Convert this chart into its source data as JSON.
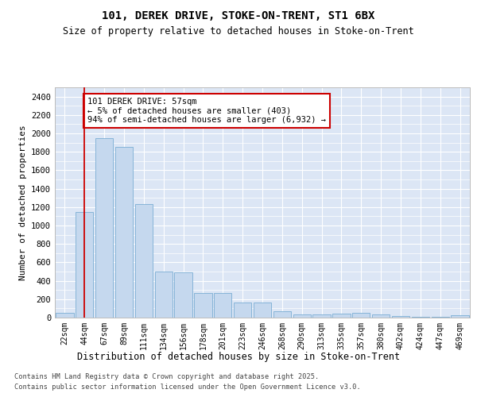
{
  "title1": "101, DEREK DRIVE, STOKE-ON-TRENT, ST1 6BX",
  "title2": "Size of property relative to detached houses in Stoke-on-Trent",
  "xlabel": "Distribution of detached houses by size in Stoke-on-Trent",
  "ylabel": "Number of detached properties",
  "categories": [
    "22sqm",
    "44sqm",
    "67sqm",
    "89sqm",
    "111sqm",
    "134sqm",
    "156sqm",
    "178sqm",
    "201sqm",
    "223sqm",
    "246sqm",
    "268sqm",
    "290sqm",
    "313sqm",
    "335sqm",
    "357sqm",
    "380sqm",
    "402sqm",
    "424sqm",
    "447sqm",
    "469sqm"
  ],
  "values": [
    50,
    1150,
    1950,
    1850,
    1230,
    500,
    490,
    265,
    265,
    160,
    160,
    70,
    35,
    35,
    45,
    50,
    35,
    20,
    5,
    5,
    30
  ],
  "bar_color": "#c5d8ee",
  "bar_edge_color": "#7aadd4",
  "vline_x_idx": 1,
  "vline_color": "#cc0000",
  "annotation_text": "101 DEREK DRIVE: 57sqm\n← 5% of detached houses are smaller (403)\n94% of semi-detached houses are larger (6,932) →",
  "annotation_box_facecolor": "#ffffff",
  "annotation_box_edgecolor": "#cc0000",
  "ylim": [
    0,
    2500
  ],
  "yticks": [
    0,
    200,
    400,
    600,
    800,
    1000,
    1200,
    1400,
    1600,
    1800,
    2000,
    2200,
    2400
  ],
  "plot_bg_color": "#dce6f5",
  "grid_color": "#ffffff",
  "fig_bg_color": "#ffffff",
  "footer1": "Contains HM Land Registry data © Crown copyright and database right 2025.",
  "footer2": "Contains public sector information licensed under the Open Government Licence v3.0."
}
